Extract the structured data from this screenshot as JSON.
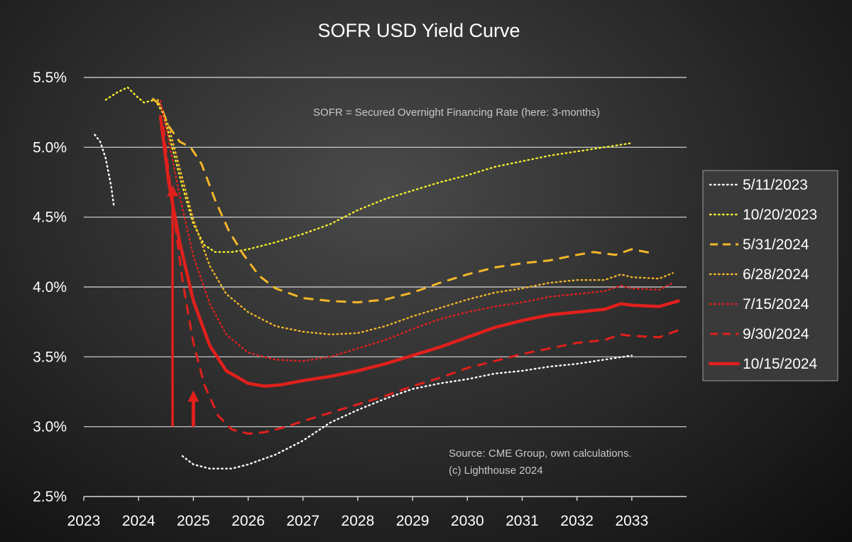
{
  "chart_data": {
    "type": "line",
    "title": "SOFR USD Yield Curve",
    "xlabel": "",
    "ylabel": "",
    "xlim": [
      2023,
      2034
    ],
    "ylim": [
      2.5,
      5.6
    ],
    "x_ticks": [
      "2023",
      "2024",
      "2025",
      "2026",
      "2027",
      "2028",
      "2029",
      "2030",
      "2031",
      "2032",
      "2033"
    ],
    "y_ticks": [
      "2.5%",
      "3.0%",
      "3.5%",
      "4.0%",
      "4.5%",
      "5.0%",
      "5.5%"
    ],
    "grid": true,
    "legend_position": "right",
    "annotations": {
      "definition": "SOFR = Secured Overnight Financing Rate (here: 3-months)",
      "source_line1": "Source: CME Group, own calculations.",
      "source_line2": "(c) Lighthouse 2024"
    },
    "arrows": [
      {
        "x": 2025.0,
        "from_y": 3.0,
        "to_y": 3.25
      },
      {
        "x": 2024.62,
        "from_y": 3.0,
        "to_y": 4.72
      }
    ],
    "series": [
      {
        "name": "5/11/2023",
        "color": "#ffffff",
        "style": "dotted",
        "points": [
          [
            2023.2,
            5.09
          ],
          [
            2023.3,
            5.04
          ],
          [
            2023.4,
            4.92
          ],
          [
            2023.5,
            4.72
          ],
          [
            2023.55,
            4.58
          ]
        ]
      },
      {
        "name": "5/11/2023",
        "color": "#ffffff",
        "style": "dotted",
        "points": [
          [
            2024.8,
            2.79
          ],
          [
            2025.0,
            2.73
          ],
          [
            2025.3,
            2.7
          ],
          [
            2025.7,
            2.7
          ],
          [
            2026.0,
            2.73
          ],
          [
            2026.5,
            2.8
          ],
          [
            2027.0,
            2.9
          ],
          [
            2027.5,
            3.03
          ],
          [
            2028.0,
            3.12
          ],
          [
            2028.5,
            3.2
          ],
          [
            2029.0,
            3.27
          ],
          [
            2029.5,
            3.31
          ],
          [
            2030.0,
            3.34
          ],
          [
            2030.5,
            3.38
          ],
          [
            2031.0,
            3.4
          ],
          [
            2031.5,
            3.43
          ],
          [
            2032.0,
            3.45
          ],
          [
            2032.5,
            3.48
          ],
          [
            2033.0,
            3.51
          ]
        ]
      },
      {
        "name": "10/20/2023",
        "color": "#f5ea2e",
        "style": "dotted",
        "points": [
          [
            2023.4,
            5.34
          ],
          [
            2023.6,
            5.39
          ],
          [
            2023.8,
            5.43
          ],
          [
            2023.95,
            5.37
          ],
          [
            2024.1,
            5.32
          ],
          [
            2024.3,
            5.34
          ],
          [
            2024.45,
            5.24
          ],
          [
            2024.6,
            5.02
          ],
          [
            2024.8,
            4.72
          ],
          [
            2025.0,
            4.45
          ],
          [
            2025.2,
            4.3
          ],
          [
            2025.4,
            4.25
          ],
          [
            2025.7,
            4.25
          ],
          [
            2026.0,
            4.27
          ],
          [
            2026.5,
            4.32
          ],
          [
            2027.0,
            4.38
          ],
          [
            2027.5,
            4.45
          ],
          [
            2028.0,
            4.55
          ],
          [
            2028.5,
            4.63
          ],
          [
            2029.0,
            4.69
          ],
          [
            2029.5,
            4.75
          ],
          [
            2030.0,
            4.8
          ],
          [
            2030.5,
            4.86
          ],
          [
            2031.0,
            4.9
          ],
          [
            2031.5,
            4.94
          ],
          [
            2032.0,
            4.97
          ],
          [
            2032.5,
            5.0
          ],
          [
            2033.0,
            5.03
          ]
        ]
      },
      {
        "name": "5/31/2024",
        "color": "#f2b628",
        "style": "dashed",
        "points": [
          [
            2024.25,
            5.35
          ],
          [
            2024.4,
            5.3
          ],
          [
            2024.55,
            5.15
          ],
          [
            2024.75,
            5.04
          ],
          [
            2024.95,
            5.0
          ],
          [
            2025.15,
            4.88
          ],
          [
            2025.4,
            4.62
          ],
          [
            2025.65,
            4.4
          ],
          [
            2025.9,
            4.24
          ],
          [
            2026.2,
            4.08
          ],
          [
            2026.5,
            3.99
          ],
          [
            2027.0,
            3.92
          ],
          [
            2027.5,
            3.9
          ],
          [
            2028.0,
            3.89
          ],
          [
            2028.5,
            3.91
          ],
          [
            2029.0,
            3.96
          ],
          [
            2029.5,
            4.03
          ],
          [
            2030.0,
            4.09
          ],
          [
            2030.5,
            4.14
          ],
          [
            2031.0,
            4.17
          ],
          [
            2031.5,
            4.19
          ],
          [
            2032.0,
            4.23
          ],
          [
            2032.3,
            4.25
          ],
          [
            2032.7,
            4.23
          ],
          [
            2033.0,
            4.27
          ],
          [
            2033.4,
            4.24
          ]
        ]
      },
      {
        "name": "6/28/2024",
        "color": "#f2b628",
        "style": "dotted",
        "points": [
          [
            2024.35,
            5.34
          ],
          [
            2024.55,
            5.15
          ],
          [
            2024.75,
            4.85
          ],
          [
            2025.0,
            4.48
          ],
          [
            2025.3,
            4.15
          ],
          [
            2025.6,
            3.95
          ],
          [
            2026.0,
            3.82
          ],
          [
            2026.5,
            3.72
          ],
          [
            2027.0,
            3.68
          ],
          [
            2027.5,
            3.66
          ],
          [
            2028.0,
            3.67
          ],
          [
            2028.5,
            3.72
          ],
          [
            2029.0,
            3.79
          ],
          [
            2029.5,
            3.85
          ],
          [
            2030.0,
            3.91
          ],
          [
            2030.5,
            3.96
          ],
          [
            2031.0,
            3.99
          ],
          [
            2031.5,
            4.03
          ],
          [
            2032.0,
            4.05
          ],
          [
            2032.5,
            4.05
          ],
          [
            2032.8,
            4.09
          ],
          [
            2033.0,
            4.07
          ],
          [
            2033.5,
            4.06
          ],
          [
            2033.75,
            4.1
          ]
        ]
      },
      {
        "name": "7/15/2024",
        "color": "#e0201c",
        "style": "dotted",
        "points": [
          [
            2024.4,
            5.33
          ],
          [
            2024.55,
            5.05
          ],
          [
            2024.75,
            4.65
          ],
          [
            2025.0,
            4.22
          ],
          [
            2025.3,
            3.88
          ],
          [
            2025.6,
            3.66
          ],
          [
            2026.0,
            3.53
          ],
          [
            2026.5,
            3.48
          ],
          [
            2027.0,
            3.47
          ],
          [
            2027.5,
            3.5
          ],
          [
            2028.0,
            3.56
          ],
          [
            2028.5,
            3.62
          ],
          [
            2029.0,
            3.7
          ],
          [
            2029.5,
            3.77
          ],
          [
            2030.0,
            3.82
          ],
          [
            2030.5,
            3.86
          ],
          [
            2031.0,
            3.89
          ],
          [
            2031.5,
            3.93
          ],
          [
            2032.0,
            3.95
          ],
          [
            2032.5,
            3.97
          ],
          [
            2032.8,
            4.01
          ],
          [
            2033.0,
            3.99
          ],
          [
            2033.5,
            3.98
          ],
          [
            2033.75,
            4.03
          ]
        ]
      },
      {
        "name": "9/30/2024",
        "color": "#e0201c",
        "style": "dashed",
        "points": [
          [
            2024.45,
            5.15
          ],
          [
            2024.6,
            4.65
          ],
          [
            2024.8,
            4.05
          ],
          [
            2025.0,
            3.6
          ],
          [
            2025.2,
            3.3
          ],
          [
            2025.45,
            3.08
          ],
          [
            2025.7,
            2.98
          ],
          [
            2026.0,
            2.95
          ],
          [
            2026.3,
            2.96
          ],
          [
            2026.7,
            3.0
          ],
          [
            2027.0,
            3.04
          ],
          [
            2027.5,
            3.1
          ],
          [
            2028.0,
            3.16
          ],
          [
            2028.5,
            3.22
          ],
          [
            2029.0,
            3.29
          ],
          [
            2029.5,
            3.35
          ],
          [
            2030.0,
            3.42
          ],
          [
            2030.5,
            3.47
          ],
          [
            2031.0,
            3.52
          ],
          [
            2031.5,
            3.56
          ],
          [
            2032.0,
            3.6
          ],
          [
            2032.5,
            3.62
          ],
          [
            2032.8,
            3.66
          ],
          [
            2033.0,
            3.65
          ],
          [
            2033.5,
            3.64
          ],
          [
            2033.85,
            3.69
          ]
        ]
      },
      {
        "name": "10/15/2024",
        "color": "#e0201c",
        "style": "solid",
        "points": [
          [
            2024.4,
            5.22
          ],
          [
            2024.55,
            4.75
          ],
          [
            2024.75,
            4.32
          ],
          [
            2025.0,
            3.9
          ],
          [
            2025.3,
            3.58
          ],
          [
            2025.6,
            3.4
          ],
          [
            2026.0,
            3.31
          ],
          [
            2026.3,
            3.29
          ],
          [
            2026.6,
            3.3
          ],
          [
            2027.0,
            3.33
          ],
          [
            2027.5,
            3.36
          ],
          [
            2028.0,
            3.4
          ],
          [
            2028.5,
            3.45
          ],
          [
            2029.0,
            3.51
          ],
          [
            2029.5,
            3.57
          ],
          [
            2030.0,
            3.64
          ],
          [
            2030.5,
            3.71
          ],
          [
            2031.0,
            3.76
          ],
          [
            2031.5,
            3.8
          ],
          [
            2032.0,
            3.82
          ],
          [
            2032.5,
            3.84
          ],
          [
            2032.8,
            3.88
          ],
          [
            2033.0,
            3.87
          ],
          [
            2033.5,
            3.86
          ],
          [
            2033.85,
            3.9
          ]
        ]
      }
    ],
    "legend": [
      {
        "label": "5/11/2023",
        "color": "#ffffff",
        "style": "dotted"
      },
      {
        "label": "10/20/2023",
        "color": "#f5ea2e",
        "style": "dotted"
      },
      {
        "label": "5/31/2024",
        "color": "#f2b628",
        "style": "dashed"
      },
      {
        "label": "6/28/2024",
        "color": "#f2b628",
        "style": "dotted"
      },
      {
        "label": "7/15/2024",
        "color": "#e0201c",
        "style": "dotted"
      },
      {
        "label": "9/30/2024",
        "color": "#e0201c",
        "style": "dashed"
      },
      {
        "label": "10/15/2024",
        "color": "#e0201c",
        "style": "solid"
      }
    ]
  }
}
